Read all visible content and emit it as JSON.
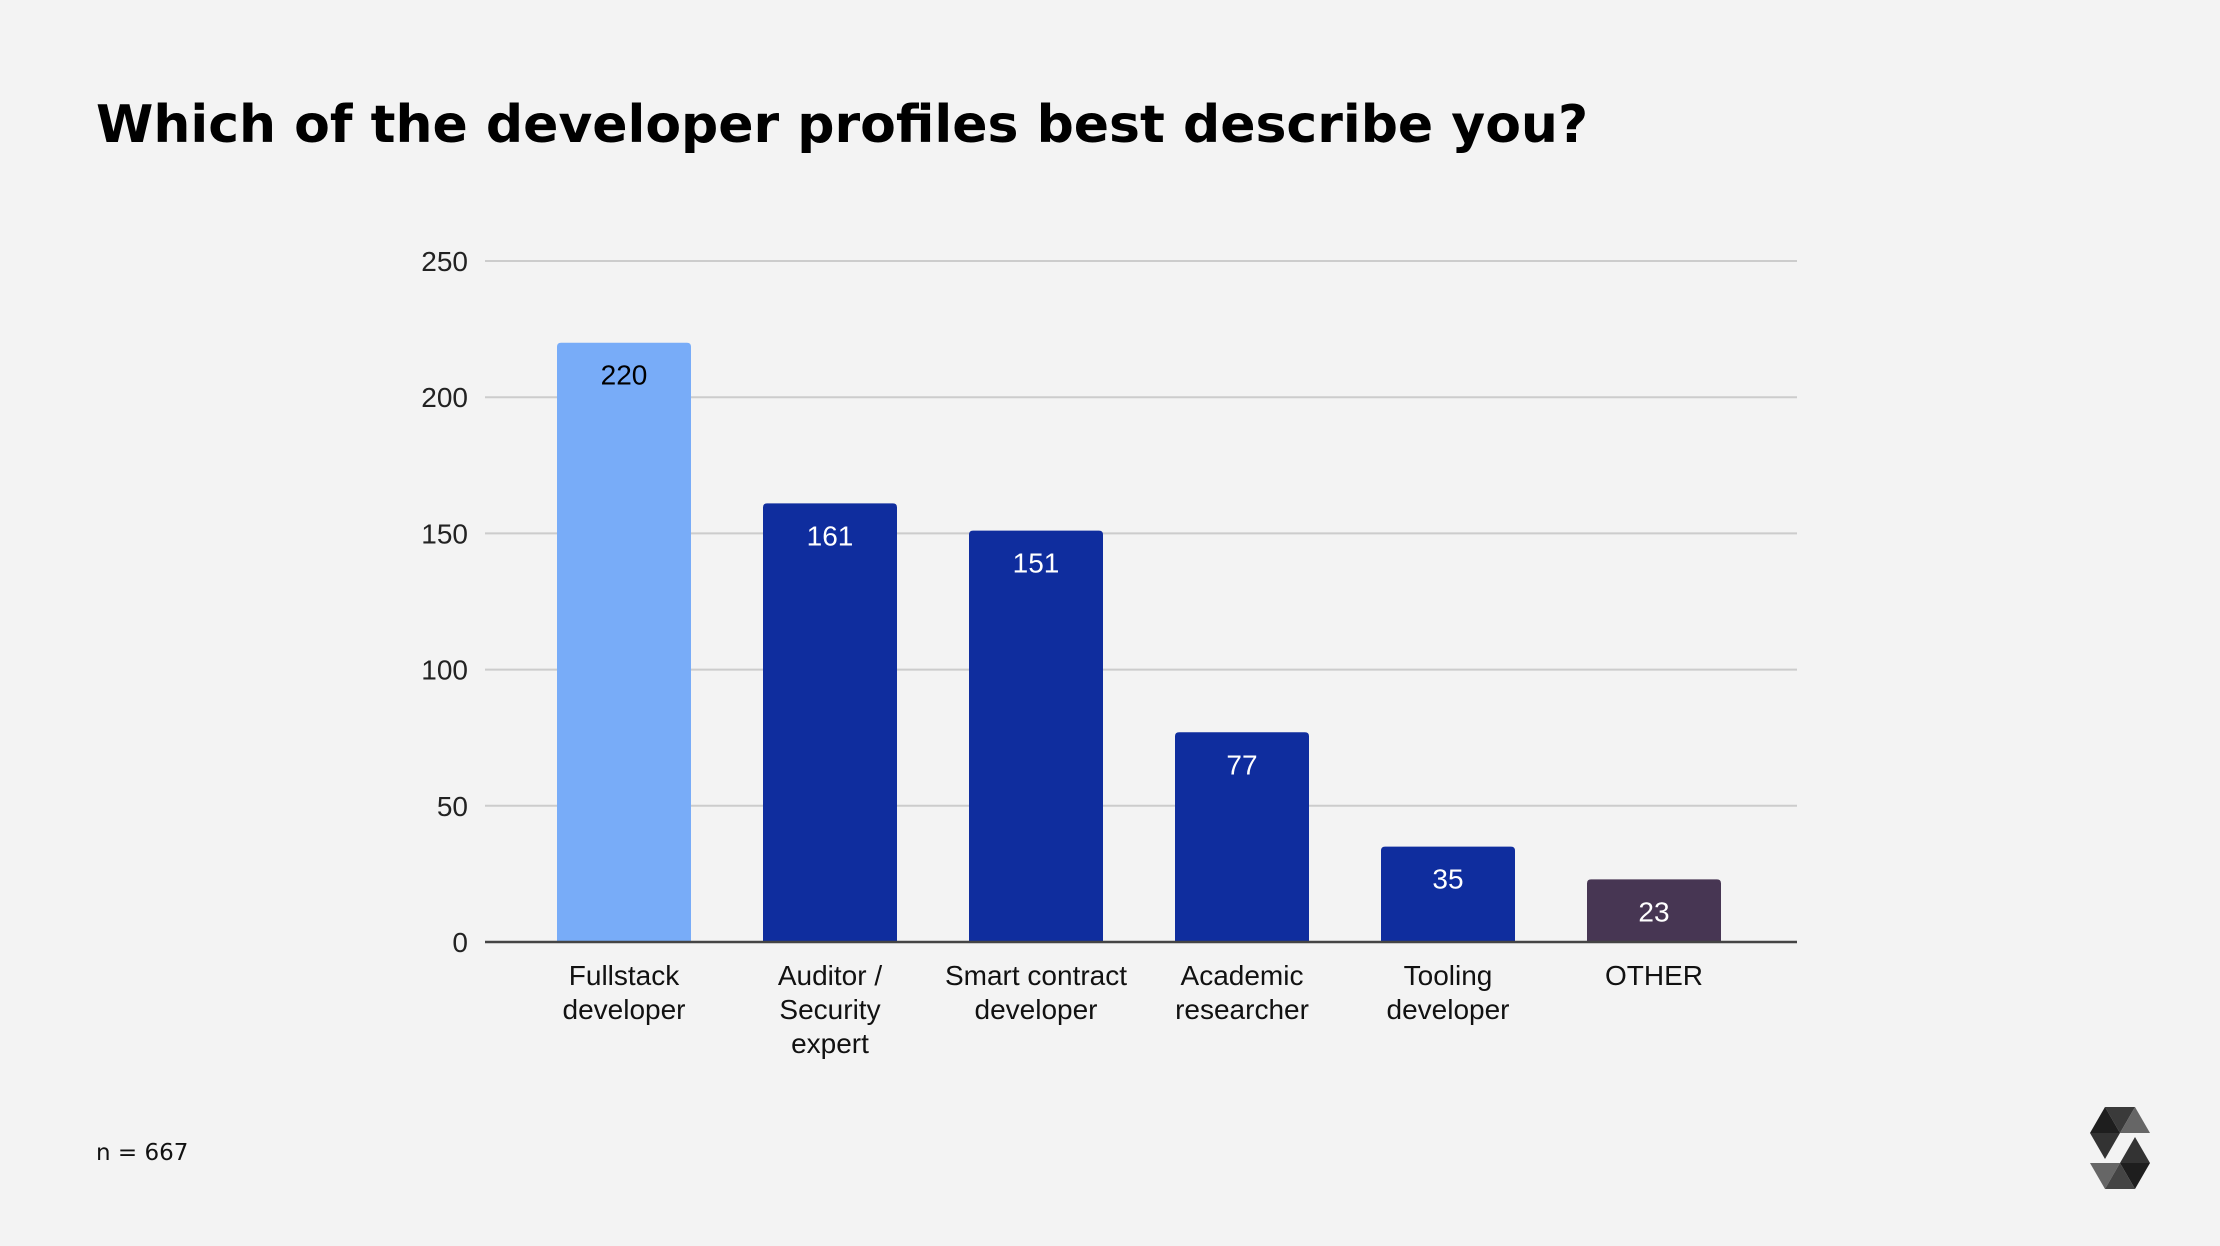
{
  "title": "Which of the developer profiles best describe you?",
  "note": "n = 667",
  "chart_data": {
    "type": "bar",
    "title": "Which of the developer profiles best describe you?",
    "categories": [
      [
        "Fullstack",
        "developer"
      ],
      [
        "Auditor /",
        "Security",
        "expert"
      ],
      [
        "Smart contract",
        "developer"
      ],
      [
        "Academic",
        "researcher"
      ],
      [
        "Tooling",
        "developer"
      ],
      [
        "OTHER"
      ]
    ],
    "values": [
      220,
      161,
      151,
      77,
      35,
      23
    ],
    "colors": [
      "#78acf8",
      "#0f2d9e",
      "#0f2d9e",
      "#0f2d9e",
      "#0f2d9e",
      "#473653"
    ],
    "label_colors": [
      "#000000",
      "#ffffff",
      "#ffffff",
      "#ffffff",
      "#ffffff",
      "#ffffff"
    ],
    "ylim": [
      0,
      250
    ],
    "yticks": [
      0,
      50,
      100,
      150,
      200,
      250
    ],
    "grid": true,
    "xlabel": "",
    "ylabel": ""
  },
  "logo": {
    "name": "solidity-logo",
    "text": ""
  }
}
